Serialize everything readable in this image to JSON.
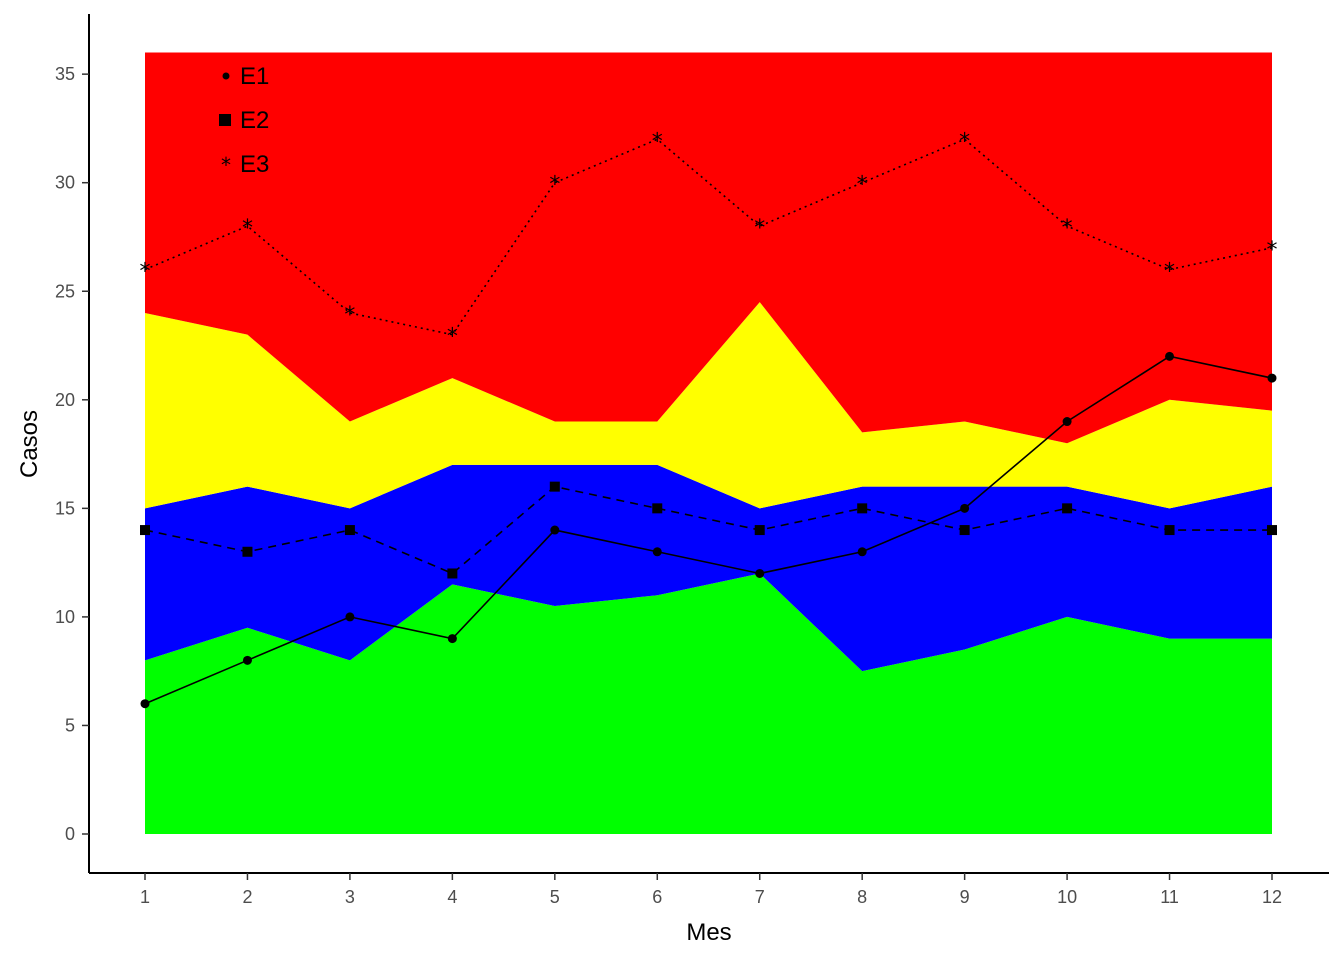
{
  "chart_data": {
    "type": "line",
    "xlabel": "Mes",
    "ylabel": "Casos",
    "xlim": [
      1,
      12
    ],
    "ylim": [
      0,
      36
    ],
    "x_ticks": [
      "1",
      "2",
      "3",
      "4",
      "5",
      "6",
      "7",
      "8",
      "9",
      "10",
      "11",
      "12"
    ],
    "y_ticks": [
      "0",
      "5",
      "10",
      "15",
      "20",
      "25",
      "30",
      "35"
    ],
    "x": [
      1,
      2,
      3,
      4,
      5,
      6,
      7,
      8,
      9,
      10,
      11,
      12
    ],
    "bands": [
      {
        "color": "#00ff00",
        "lower": [
          0,
          0,
          0,
          0,
          0,
          0,
          0,
          0,
          0,
          0,
          0,
          0
        ],
        "upper": [
          8,
          9.5,
          8,
          11.5,
          10.5,
          11,
          12,
          7.5,
          8.5,
          10,
          9,
          9
        ]
      },
      {
        "color": "#0000ff",
        "lower": [
          8,
          9.5,
          8,
          11.5,
          10.5,
          11,
          12,
          7.5,
          8.5,
          10,
          9,
          9
        ],
        "upper": [
          15,
          16,
          15,
          17,
          17,
          17,
          15,
          16,
          16,
          16,
          15,
          16
        ]
      },
      {
        "color": "#ffff00",
        "lower": [
          15,
          16,
          15,
          17,
          17,
          17,
          15,
          16,
          16,
          16,
          15,
          16
        ],
        "upper": [
          24,
          23,
          19,
          21,
          19,
          19,
          24.5,
          18.5,
          19,
          18,
          20,
          19.5
        ]
      },
      {
        "color": "#ff0000",
        "lower": [
          24,
          23,
          19,
          21,
          19,
          19,
          24.5,
          18.5,
          19,
          18,
          20,
          19.5
        ],
        "upper": [
          36,
          36,
          36,
          36,
          36,
          36,
          36,
          36,
          36,
          36,
          36,
          36
        ]
      }
    ],
    "series": [
      {
        "name": "E1",
        "marker": "circle",
        "line": "solid",
        "values": [
          6,
          8,
          10,
          9,
          14,
          13,
          12,
          13,
          15,
          19,
          22,
          21
        ]
      },
      {
        "name": "E2",
        "marker": "square",
        "line": "dashed",
        "values": [
          14,
          13,
          14,
          12,
          16,
          15,
          14,
          15,
          14,
          15,
          14,
          14
        ]
      },
      {
        "name": "E3",
        "marker": "asterisk",
        "line": "dotted",
        "values": [
          26,
          28,
          24,
          23,
          30,
          32,
          28,
          30,
          32,
          28,
          26,
          27
        ]
      }
    ],
    "legend": {
      "placement": "top-left",
      "symbols": [
        "•",
        "■",
        "*"
      ]
    }
  }
}
